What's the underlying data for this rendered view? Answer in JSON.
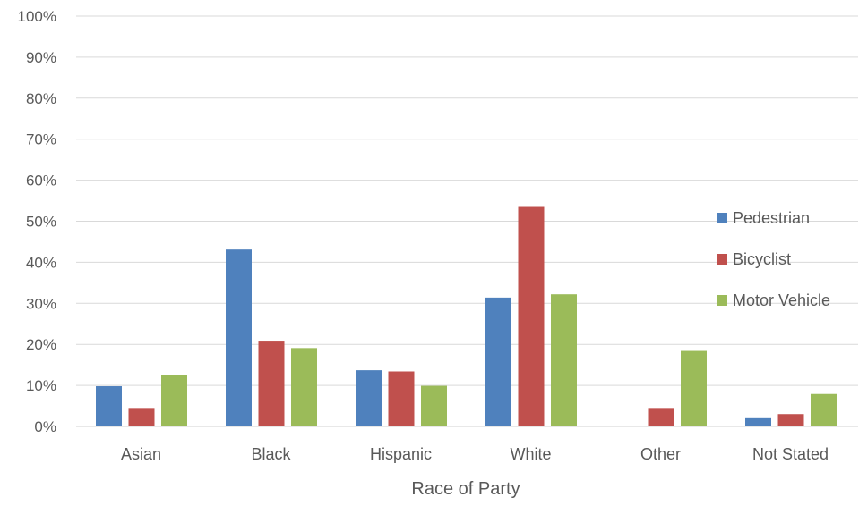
{
  "chart_data": {
    "type": "bar",
    "title": "",
    "xlabel": "Race of Party",
    "ylabel": "",
    "ylim": [
      0,
      100
    ],
    "y_ticks": [
      "0%",
      "10%",
      "20%",
      "30%",
      "40%",
      "50%",
      "60%",
      "70%",
      "80%",
      "90%",
      "100%"
    ],
    "categories": [
      "Asian",
      "Black",
      "Hispanic",
      "White",
      "Other",
      "Not Stated"
    ],
    "series": [
      {
        "name": "Pedestrian",
        "color": "#4f81bd",
        "values": [
          9.8,
          43.1,
          13.7,
          31.4,
          0,
          2.0
        ]
      },
      {
        "name": "Bicyclist",
        "color": "#c0504d",
        "values": [
          4.5,
          20.9,
          13.4,
          53.7,
          4.5,
          3.0
        ]
      },
      {
        "name": "Motor Vehicle",
        "color": "#9bbb59",
        "values": [
          12.5,
          19.1,
          9.9,
          32.2,
          18.4,
          7.9
        ]
      }
    ],
    "gridlines": true,
    "legend_position": "right"
  }
}
